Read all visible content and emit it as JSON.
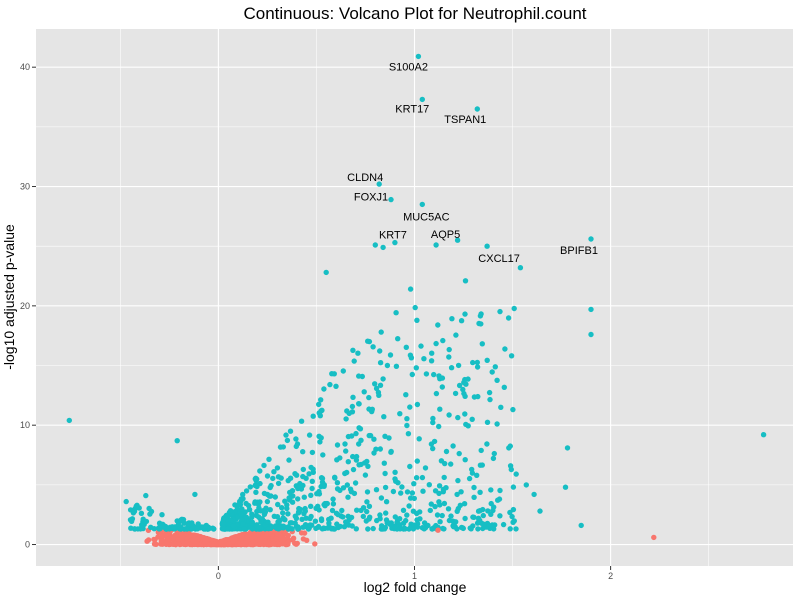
{
  "chart_data": {
    "type": "scatter",
    "title": "Continuous: Volcano Plot for Neutrophil.count",
    "xlabel": "log2 fold change",
    "ylabel": "-log10 adjusted p-value",
    "xlim": [
      -0.93,
      2.93
    ],
    "ylim": [
      -1.8,
      43.2
    ],
    "x_ticks": [
      0,
      1,
      2
    ],
    "x_tick_labels": [
      "0",
      "1",
      "2"
    ],
    "y_ticks": [
      0,
      10,
      20,
      30,
      40
    ],
    "y_tick_labels": [
      "0",
      "10",
      "20",
      "30",
      "40"
    ],
    "grid": true,
    "legend": "none",
    "colors": {
      "significant": "#17BEC4",
      "not_significant": "#F8766D",
      "panel_background": "#E5E5E5",
      "grid_line": "#FFFFFF"
    },
    "series_notes": "teal = adjusted p-value below threshold (-log10 >= ~1.3); red = not significant",
    "labeled_genes": [
      {
        "gene": "S100A2",
        "x": 1.02,
        "y": 40.9
      },
      {
        "gene": "KRT17",
        "x": 1.04,
        "y": 37.3
      },
      {
        "gene": "TSPAN1",
        "x": 1.32,
        "y": 36.5
      },
      {
        "gene": "CLDN4",
        "x": 0.82,
        "y": 30.2
      },
      {
        "gene": "FOXJ1",
        "x": 0.88,
        "y": 28.9
      },
      {
        "gene": "MUC5AC",
        "x": 1.04,
        "y": 28.5
      },
      {
        "gene": "KRT7",
        "x": 0.9,
        "y": 25.3
      },
      {
        "gene": "AQP5",
        "x": 1.22,
        "y": 25.5
      },
      {
        "gene": "CXCL17",
        "x": 1.37,
        "y": 25.0
      },
      {
        "gene": "BPIFB1",
        "x": 1.9,
        "y": 25.6
      }
    ],
    "highlighted_points": [
      {
        "x": -0.76,
        "y": 10.4
      },
      {
        "x": -0.21,
        "y": 8.7
      },
      {
        "x": 2.78,
        "y": 9.2
      },
      {
        "x": 2.22,
        "y": 0.6
      },
      {
        "x": 1.9,
        "y": 19.7
      },
      {
        "x": 1.9,
        "y": 17.6
      },
      {
        "x": 0.98,
        "y": 21.4
      },
      {
        "x": 1.26,
        "y": 22.1
      },
      {
        "x": 1.54,
        "y": 23.2
      },
      {
        "x": 0.55,
        "y": 22.8
      },
      {
        "x": 0.8,
        "y": 25.1
      },
      {
        "x": 0.84,
        "y": 24.9
      },
      {
        "x": 1.11,
        "y": 25.1
      },
      {
        "x": 1.44,
        "y": 11.5
      },
      {
        "x": 1.49,
        "y": 6.6
      },
      {
        "x": 1.57,
        "y": 5.0
      },
      {
        "x": 1.61,
        "y": 4.2
      },
      {
        "x": 1.78,
        "y": 8.1
      },
      {
        "x": 1.77,
        "y": 4.8
      },
      {
        "x": 1.85,
        "y": 1.6
      },
      {
        "x": 1.64,
        "y": 2.8
      },
      {
        "x": -0.47,
        "y": 3.6
      },
      {
        "x": -0.37,
        "y": 4.1
      },
      {
        "x": -0.12,
        "y": 4.2
      },
      {
        "x": 1.12,
        "y": 1.2
      },
      {
        "x": 1.21,
        "y": 1.9
      }
    ],
    "bulk_significant_cloud": {
      "description": "dense teal cloud of significant genes",
      "x_range": [
        -0.5,
        1.55
      ],
      "y_range": [
        1.3,
        20
      ],
      "approx_count": 900
    },
    "bulk_nonsignificant_cloud": {
      "description": "dense red band of non-significant genes near y=0",
      "x_range": [
        -0.42,
        0.72
      ],
      "y_range": [
        0,
        1.3
      ],
      "approx_count": 1800
    }
  }
}
